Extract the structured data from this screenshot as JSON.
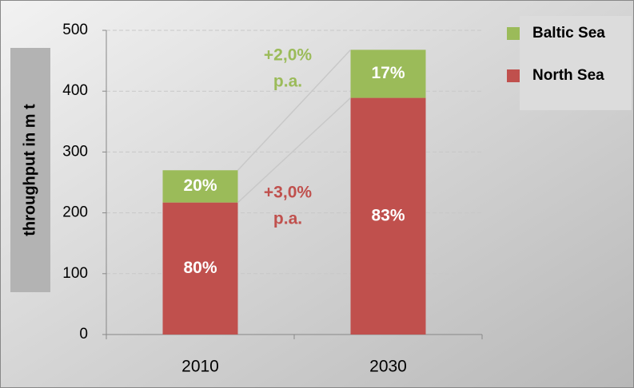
{
  "chart_data": {
    "type": "stacked_bar",
    "y_label": "throughput in m t",
    "categories": [
      "2010",
      "2030"
    ],
    "series": [
      {
        "name": "North Sea",
        "color": "#c0504d",
        "values": [
          217,
          389
        ],
        "value_labels": [
          "80%",
          "83%"
        ]
      },
      {
        "name": "Baltic Sea",
        "color": "#9bbb59",
        "values": [
          53,
          79
        ],
        "value_labels": [
          "20%",
          "17%"
        ]
      }
    ],
    "annotations": [
      {
        "lines": [
          "+2,0%",
          "p.a."
        ],
        "color": "#9bbb59"
      },
      {
        "lines": [
          "+3,0%",
          "p.a."
        ],
        "color": "#c0504d"
      }
    ],
    "ylim": [
      0,
      500
    ],
    "yticks": [
      0,
      100,
      200,
      300,
      400,
      500
    ],
    "grid": true,
    "legend": "right"
  }
}
